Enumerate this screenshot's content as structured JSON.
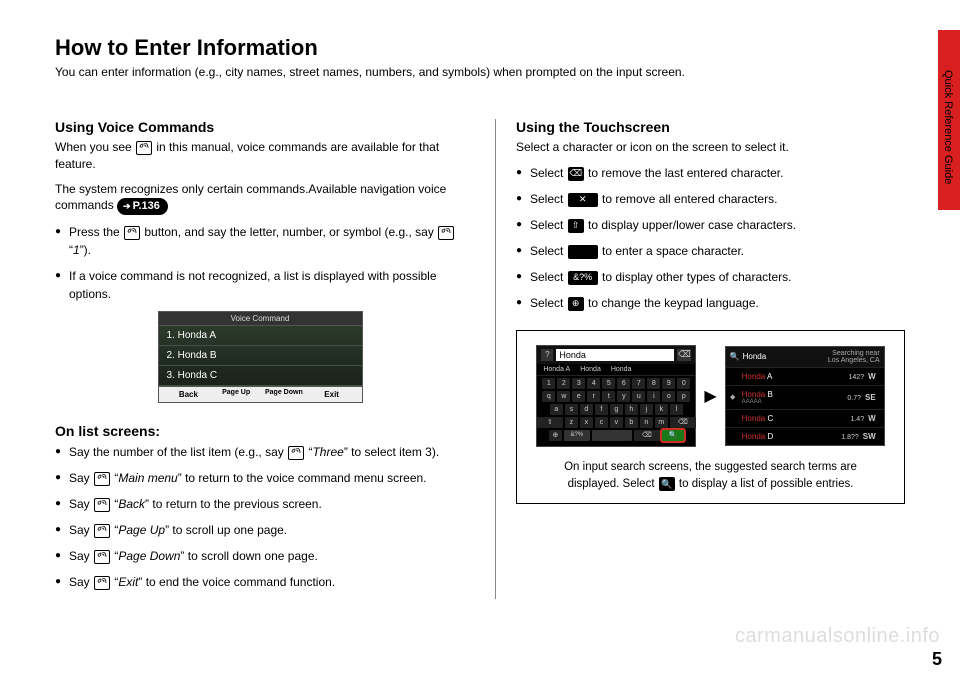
{
  "title": "How to Enter Information",
  "subtitle": "You can enter information (e.g., city names, street names, numbers, and symbols) when prompted on the input screen.",
  "side_tab_label": "Quick Reference Guide",
  "page_number": "5",
  "watermark": "carmanualsonline.info",
  "left": {
    "voice": {
      "heading": "Using Voice Commands",
      "p1a": "When you see ",
      "p1b": " in this manual, voice commands are available for that feature.",
      "p2": "The system recognizes only certain commands.Available navigation voice commands ",
      "page_ref": "P.136",
      "b1a": "Press the ",
      "b1b": " button, and say the letter, number, or symbol (e.g., say ",
      "b1c": " “",
      "b1d": "1",
      "b1e": "”).",
      "b2": "If a voice command is not recognized, a list is displayed with possible options."
    },
    "vc_screen": {
      "title": "Voice Command",
      "rows": [
        "1. Honda A",
        "2. Honda B",
        "3. Honda C"
      ],
      "footer": {
        "back": "Back",
        "pgup": "Page\nUp",
        "pgdn": "Page\nDown",
        "exit": "Exit"
      }
    },
    "list": {
      "heading": "On list screens:",
      "b1a": "Say the number of the list item (e.g., say ",
      "b1b": " “",
      "b1c": "Three",
      "b1d": "” to select item 3).",
      "b2a": "Say ",
      "b2b": " “",
      "b2c": "Main menu",
      "b2d": "” to return to the voice command menu screen.",
      "b3a": "Say ",
      "b3b": " “",
      "b3c": "Back",
      "b3d": "” to return to the previous screen.",
      "b4a": "Say ",
      "b4b": " “",
      "b4c": "Page Up",
      "b4d": "” to scroll up one page.",
      "b5a": "Say ",
      "b5b": " “",
      "b5c": "Page Down",
      "b5d": "” to scroll down one page.",
      "b6a": "Say ",
      "b6b": " “",
      "b6c": "Exit",
      "b6d": "” to end the voice command function."
    }
  },
  "right": {
    "heading": "Using the Touchscreen",
    "p1": "Select a character or icon on the screen to select it.",
    "items": [
      {
        "pre": "Select ",
        "icon": "⌫",
        "dark": true,
        "post": " to remove the last entered character."
      },
      {
        "pre": "Select ",
        "icon": "✕",
        "dark": true,
        "wide": true,
        "post": " to remove all entered characters."
      },
      {
        "pre": "Select ",
        "icon": "⇧",
        "dark": true,
        "post": " to display upper/lower case characters."
      },
      {
        "pre": "Select ",
        "icon": " ",
        "dark": true,
        "wide": true,
        "post": " to enter a space character."
      },
      {
        "pre": "Select ",
        "icon": "&?%",
        "dark": true,
        "wide": true,
        "post": " to display other types of characters."
      },
      {
        "pre": "Select ",
        "icon": "⊕",
        "dark": true,
        "post": " to change the keypad language."
      }
    ],
    "keyboard": {
      "input": "Honda",
      "suggestions": [
        "Honda A",
        "Honda",
        "Honda"
      ],
      "row1": [
        "1",
        "2",
        "3",
        "4",
        "5",
        "6",
        "7",
        "8",
        "9",
        "0"
      ],
      "row2": [
        "q",
        "w",
        "e",
        "r",
        "t",
        "y",
        "u",
        "i",
        "o",
        "p"
      ],
      "row3": [
        "a",
        "s",
        "d",
        "f",
        "g",
        "h",
        "j",
        "k",
        "l"
      ],
      "row4_shift": "⇧",
      "row4": [
        "z",
        "x",
        "c",
        "v",
        "b",
        "n",
        "m"
      ],
      "row4_del": "⌫",
      "row5": {
        "globe": "⊕",
        "alt": "&?%",
        "space": "",
        "search": "🔍"
      }
    },
    "results": {
      "query": "Honda",
      "loc1": "Searching near",
      "loc2": "Los Angeles, CA",
      "rows": [
        {
          "hl": "Honda",
          "rest": " A",
          "dist": "142?",
          "dir": "W"
        },
        {
          "hl": "Honda",
          "rest": " B",
          "sub": "AAAAA",
          "dist": "0.7?",
          "dir": "SE"
        },
        {
          "hl": "Honda",
          "rest": " C",
          "dist": "1.4?",
          "dir": "W"
        },
        {
          "hl": "Honda",
          "rest": " D",
          "dist": "1.8??",
          "dir": "SW"
        }
      ]
    },
    "caption1": "On input search screens, the suggested search terms are displayed. Select ",
    "caption_icon": "🔍",
    "caption2": " to display a list of possible entries."
  }
}
